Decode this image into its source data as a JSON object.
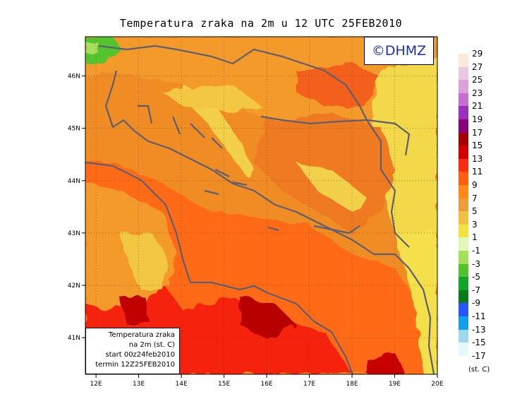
{
  "title": "Temperatura zraka na 2m u 12 UTC 25FEB2010",
  "logo_text": "©DHMZ",
  "info_box": {
    "line1": "Temperatura zraka",
    "line2": "na 2m (st. C)",
    "line3": "start 00z24feb2010",
    "line4": "termin 12Z25FEB2010"
  },
  "axes": {
    "x_ticks": [
      "12E",
      "13E",
      "14E",
      "15E",
      "16E",
      "17E",
      "18E",
      "19E",
      "20E"
    ],
    "y_ticks": [
      "46N",
      "45N",
      "44N",
      "43N",
      "42N",
      "41N"
    ],
    "x_range": [
      11.75,
      20.0
    ],
    "y_range": [
      40.3,
      46.75
    ],
    "grid": true
  },
  "legend": {
    "unit": "(st. C)",
    "labels": [
      "29",
      "27",
      "25",
      "23",
      "21",
      "19",
      "17",
      "15",
      "13",
      "11",
      "9",
      "7",
      "5",
      "3",
      "1",
      "-1",
      "-3",
      "-5",
      "-7",
      "-9",
      "-11",
      "-13",
      "-15",
      "-17"
    ],
    "colors": [
      "#fbe9dc",
      "#e8c9e4",
      "#dca1dc",
      "#c56fd1",
      "#9a2fbb",
      "#8a0078",
      "#a00000",
      "#d20000",
      "#ff2a12",
      "#ff5e10",
      "#ff8a18",
      "#ec9e3a",
      "#f2c040",
      "#f3e340",
      "#e4f7b8",
      "#a6e05a",
      "#52c32f",
      "#12a528",
      "#0a7a1a",
      "#2855ff",
      "#12a0e8",
      "#9fd8ec",
      "#e6f8fa"
    ]
  },
  "colors": {
    "background_field": "#ff7a18",
    "sea": "#ff6a12",
    "coastline": "#5a5a6e"
  }
}
